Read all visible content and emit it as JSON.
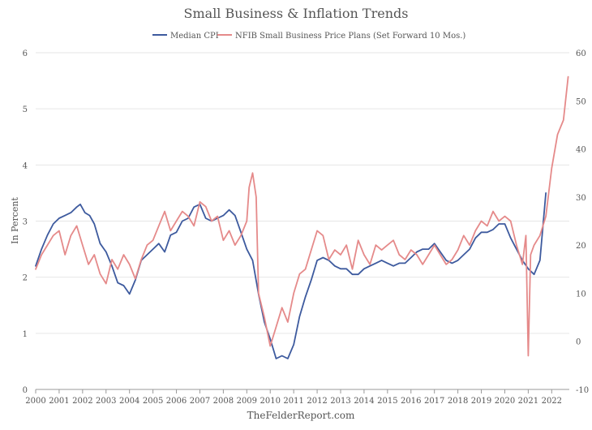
{
  "chart_data": {
    "type": "line",
    "title": "Small Business & Inflation Trends",
    "ylabel": "In Percent",
    "y2label": "",
    "xlabel": "",
    "source": "TheFelderReport.com",
    "ylim": [
      0,
      6
    ],
    "y2lim": [
      -10,
      60
    ],
    "xlim": [
      2000,
      2022.75
    ],
    "yticks": [
      "0",
      "1",
      "2",
      "3",
      "4",
      "5",
      "6"
    ],
    "y2ticks": [
      "-10",
      "0",
      "10",
      "20",
      "30",
      "40",
      "50",
      "60"
    ],
    "xticks": [
      "2000",
      "2001",
      "2002",
      "2003",
      "2004",
      "2005",
      "2006",
      "2007",
      "2008",
      "2009",
      "2010",
      "2011",
      "2012",
      "2013",
      "2014",
      "2015",
      "2016",
      "2017",
      "2018",
      "2019",
      "2020",
      "2021",
      "2022"
    ],
    "legend_position": "top-center",
    "series": [
      {
        "name": "Median CPI",
        "axis": "left",
        "color": "#3d5a9e",
        "x": [
          2000.0,
          2000.25,
          2000.5,
          2000.75,
          2001.0,
          2001.25,
          2001.5,
          2001.75,
          2001.9,
          2002.1,
          2002.3,
          2002.5,
          2002.75,
          2003.0,
          2003.25,
          2003.5,
          2003.75,
          2004.0,
          2004.25,
          2004.5,
          2004.75,
          2005.0,
          2005.25,
          2005.5,
          2005.75,
          2006.0,
          2006.25,
          2006.5,
          2006.75,
          2007.0,
          2007.25,
          2007.5,
          2007.75,
          2008.0,
          2008.25,
          2008.5,
          2008.75,
          2009.0,
          2009.25,
          2009.5,
          2009.75,
          2010.0,
          2010.25,
          2010.5,
          2010.75,
          2011.0,
          2011.25,
          2011.5,
          2011.75,
          2012.0,
          2012.25,
          2012.5,
          2012.75,
          2013.0,
          2013.25,
          2013.5,
          2013.75,
          2014.0,
          2014.25,
          2014.5,
          2014.75,
          2015.0,
          2015.25,
          2015.5,
          2015.75,
          2016.0,
          2016.25,
          2016.5,
          2016.75,
          2017.0,
          2017.25,
          2017.5,
          2017.75,
          2018.0,
          2018.25,
          2018.5,
          2018.75,
          2019.0,
          2019.25,
          2019.5,
          2019.75,
          2020.0,
          2020.25,
          2020.5,
          2020.75,
          2021.0,
          2021.25,
          2021.5,
          2021.75
        ],
        "values": [
          2.2,
          2.5,
          2.75,
          2.95,
          3.05,
          3.1,
          3.15,
          3.25,
          3.3,
          3.15,
          3.1,
          2.95,
          2.6,
          2.45,
          2.2,
          1.9,
          1.85,
          1.7,
          1.95,
          2.3,
          2.4,
          2.5,
          2.6,
          2.45,
          2.75,
          2.8,
          3.0,
          3.05,
          3.25,
          3.3,
          3.05,
          3.0,
          3.05,
          3.1,
          3.2,
          3.1,
          2.8,
          2.5,
          2.3,
          1.7,
          1.2,
          0.9,
          0.55,
          0.6,
          0.55,
          0.8,
          1.3,
          1.65,
          1.95,
          2.3,
          2.35,
          2.3,
          2.2,
          2.15,
          2.15,
          2.05,
          2.05,
          2.15,
          2.2,
          2.25,
          2.3,
          2.25,
          2.2,
          2.25,
          2.25,
          2.35,
          2.45,
          2.5,
          2.5,
          2.6,
          2.45,
          2.3,
          2.25,
          2.3,
          2.4,
          2.5,
          2.7,
          2.8,
          2.8,
          2.85,
          2.95,
          2.95,
          2.7,
          2.5,
          2.3,
          2.15,
          2.05,
          2.3,
          3.5
        ]
      },
      {
        "name": "NFIB Small Business Price Plans (Set Forward 10 Mos.)",
        "axis": "right",
        "color": "#e58a8a",
        "x": [
          2000.0,
          2000.25,
          2000.5,
          2000.75,
          2001.0,
          2001.25,
          2001.5,
          2001.75,
          2002.0,
          2002.25,
          2002.5,
          2002.75,
          2003.0,
          2003.25,
          2003.5,
          2003.75,
          2004.0,
          2004.25,
          2004.5,
          2004.75,
          2005.0,
          2005.25,
          2005.5,
          2005.75,
          2006.0,
          2006.25,
          2006.5,
          2006.75,
          2007.0,
          2007.25,
          2007.5,
          2007.75,
          2008.0,
          2008.25,
          2008.5,
          2008.75,
          2009.0,
          2009.1,
          2009.25,
          2009.4,
          2009.5,
          2009.75,
          2010.0,
          2010.25,
          2010.5,
          2010.75,
          2011.0,
          2011.25,
          2011.5,
          2011.75,
          2012.0,
          2012.25,
          2012.5,
          2012.75,
          2013.0,
          2013.25,
          2013.5,
          2013.75,
          2014.0,
          2014.25,
          2014.5,
          2014.75,
          2015.0,
          2015.25,
          2015.5,
          2015.75,
          2016.0,
          2016.25,
          2016.5,
          2016.75,
          2017.0,
          2017.25,
          2017.5,
          2017.75,
          2018.0,
          2018.25,
          2018.5,
          2018.75,
          2019.0,
          2019.25,
          2019.5,
          2019.75,
          2020.0,
          2020.25,
          2020.5,
          2020.75,
          2020.9,
          2021.0,
          2021.1,
          2021.25,
          2021.5,
          2021.75,
          2022.0,
          2022.25,
          2022.5,
          2022.7
        ],
        "values": [
          15,
          18,
          20,
          22,
          23,
          18,
          22,
          24,
          20,
          16,
          18,
          14,
          12,
          17,
          15,
          18,
          16,
          13,
          17,
          20,
          21,
          24,
          27,
          23,
          25,
          27,
          26,
          24,
          29,
          28,
          25,
          26,
          21,
          23,
          20,
          22,
          25,
          32,
          35,
          30,
          10,
          5,
          -1,
          3,
          7,
          4,
          10,
          14,
          15,
          19,
          23,
          22,
          17,
          19,
          18,
          20,
          15,
          21,
          18,
          16,
          20,
          19,
          20,
          21,
          18,
          17,
          19,
          18,
          16,
          18,
          20,
          18,
          16,
          17,
          19,
          22,
          20,
          23,
          25,
          24,
          27,
          25,
          26,
          25,
          20,
          16,
          22,
          -3,
          18,
          20,
          22,
          26,
          36,
          43,
          46,
          55
        ]
      }
    ]
  }
}
